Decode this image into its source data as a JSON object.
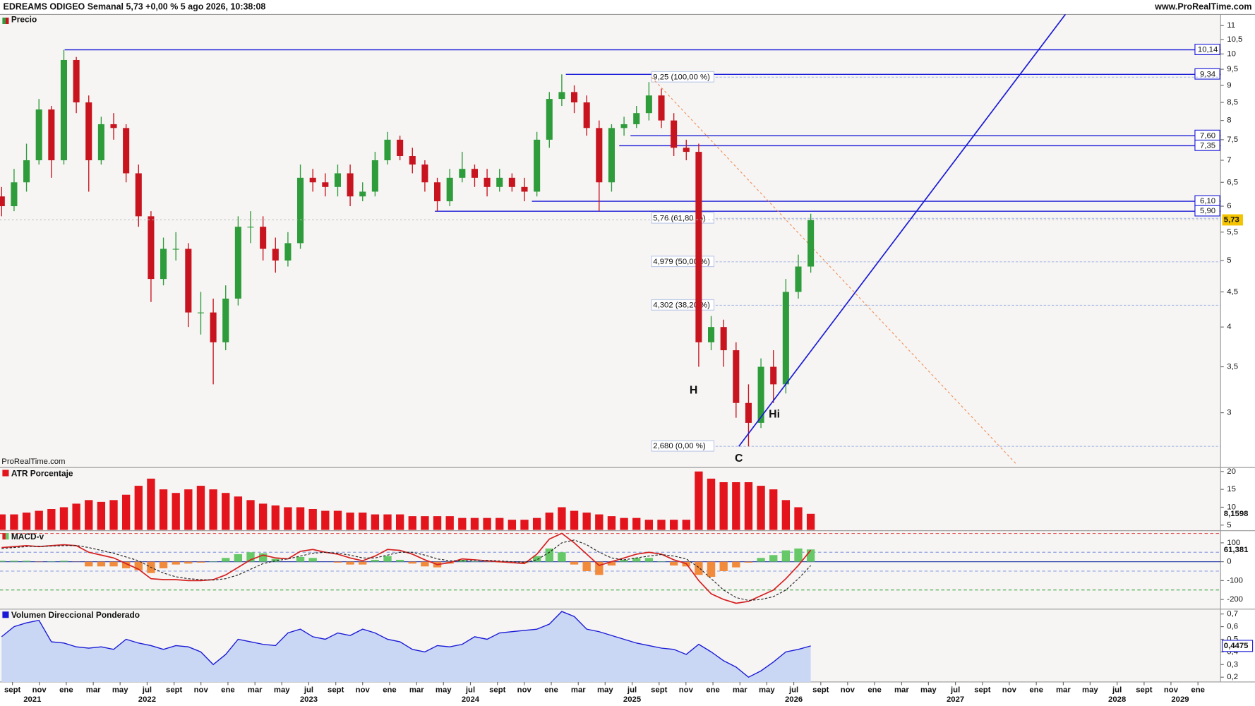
{
  "header": {
    "title": "EDREAMS ODIGEO Semanal 5,73 +0,00 % 5 ago 2026, 10:38:08",
    "site": "www.ProRealTime.com"
  },
  "chart_data": [
    {
      "type": "candlestick",
      "title": "Precio",
      "watermark": "ProRealTime.com",
      "log_scale": true,
      "up_color": "#2e9c3a",
      "down_color": "#c8141e",
      "x": [
        2021.6,
        2021.677,
        2021.754,
        2021.831,
        2021.908,
        2021.985,
        2022.062,
        2022.139,
        2022.216,
        2022.293,
        2022.37,
        2022.447,
        2022.524,
        2022.601,
        2022.678,
        2022.755,
        2022.832,
        2022.909,
        2022.986,
        2023.063,
        2023.14,
        2023.217,
        2023.294,
        2023.371,
        2023.448,
        2023.525,
        2023.602,
        2023.679,
        2023.756,
        2023.833,
        2023.91,
        2023.987,
        2024.064,
        2024.141,
        2024.218,
        2024.295,
        2024.372,
        2024.449,
        2024.526,
        2024.603,
        2024.68,
        2024.757,
        2024.834,
        2024.911,
        2024.988,
        2025.065,
        2025.142,
        2025.219,
        2025.296,
        2025.373,
        2025.45,
        2025.527,
        2025.604,
        2025.681,
        2025.758,
        2025.835,
        2025.912,
        2025.989,
        2026.066,
        2026.143,
        2026.22,
        2026.297,
        2026.374,
        2026.451,
        2026.528,
        2026.605
      ],
      "open": [
        6.2,
        6.0,
        6.5,
        7.0,
        8.3,
        7.0,
        9.8,
        8.5,
        7.0,
        7.9,
        7.8,
        6.7,
        5.8,
        4.7,
        5.2,
        5.2,
        4.2,
        4.2,
        3.8,
        4.4,
        5.6,
        5.6,
        5.2,
        5.0,
        5.3,
        6.6,
        6.5,
        6.4,
        6.7,
        6.2,
        6.3,
        7.0,
        7.5,
        7.1,
        6.9,
        6.5,
        6.1,
        6.6,
        6.8,
        6.6,
        6.4,
        6.6,
        6.4,
        6.3,
        7.5,
        8.6,
        8.8,
        8.5,
        7.8,
        6.5,
        7.8,
        7.9,
        8.2,
        8.7,
        8.0,
        7.3,
        7.2,
        3.8,
        4.0,
        3.7,
        3.1,
        2.9,
        3.5,
        3.3,
        4.5,
        4.9
      ],
      "high": [
        6.4,
        6.8,
        7.4,
        8.6,
        8.4,
        10.14,
        9.9,
        8.7,
        8.1,
        8.2,
        7.9,
        6.9,
        5.9,
        5.4,
        5.5,
        5.3,
        4.5,
        4.4,
        4.6,
        5.8,
        5.9,
        5.8,
        5.4,
        5.5,
        6.9,
        6.8,
        6.7,
        6.9,
        6.9,
        6.5,
        7.2,
        7.7,
        7.6,
        7.3,
        7.0,
        6.6,
        6.8,
        7.2,
        6.9,
        6.8,
        6.8,
        6.7,
        6.6,
        7.7,
        8.8,
        9.34,
        9.0,
        8.7,
        8.0,
        7.9,
        8.1,
        8.4,
        9.1,
        8.9,
        8.2,
        7.5,
        7.4,
        4.15,
        4.1,
        3.8,
        3.3,
        3.6,
        3.7,
        4.7,
        5.1,
        5.85
      ],
      "low": [
        5.8,
        5.9,
        6.3,
        6.9,
        6.6,
        6.9,
        8.2,
        6.3,
        6.9,
        7.5,
        6.5,
        5.6,
        4.35,
        4.6,
        5.0,
        4.0,
        3.9,
        3.3,
        3.7,
        4.3,
        5.3,
        5.0,
        4.8,
        4.9,
        5.2,
        6.3,
        6.2,
        6.2,
        6.0,
        6.1,
        6.2,
        6.9,
        7.0,
        6.7,
        6.3,
        5.9,
        6.0,
        6.5,
        6.4,
        6.2,
        6.3,
        6.3,
        6.1,
        6.2,
        7.3,
        8.4,
        8.2,
        7.6,
        5.9,
        6.3,
        7.6,
        7.8,
        8.0,
        7.8,
        7.1,
        7.0,
        3.5,
        3.7,
        3.5,
        2.95,
        2.68,
        2.85,
        3.1,
        3.2,
        4.4,
        4.8
      ],
      "close": [
        6.0,
        6.5,
        7.0,
        8.3,
        7.0,
        9.8,
        8.5,
        7.0,
        7.9,
        7.8,
        6.7,
        5.8,
        4.7,
        5.2,
        5.2,
        4.2,
        4.2,
        3.8,
        4.4,
        5.6,
        5.6,
        5.2,
        5.0,
        5.3,
        6.6,
        6.5,
        6.4,
        6.7,
        6.2,
        6.3,
        7.0,
        7.5,
        7.1,
        6.9,
        6.5,
        6.1,
        6.6,
        6.8,
        6.6,
        6.4,
        6.6,
        6.4,
        6.3,
        7.5,
        8.6,
        8.8,
        8.5,
        7.8,
        6.5,
        7.8,
        7.9,
        8.2,
        8.7,
        8.0,
        7.3,
        7.2,
        3.8,
        4.0,
        3.7,
        3.1,
        2.9,
        3.5,
        3.3,
        4.5,
        4.9,
        5.73
      ],
      "last_label": "5,73",
      "xlim": [
        2021.59,
        2029.14
      ],
      "xticks": [
        {
          "value": 2021.667,
          "label": "sept"
        },
        {
          "value": 2021.833,
          "label": "nov"
        },
        {
          "value": 2022,
          "label": "ene"
        },
        {
          "value": 2022.167,
          "label": "mar"
        },
        {
          "value": 2022.333,
          "label": "may"
        },
        {
          "value": 2022.5,
          "label": "jul"
        },
        {
          "value": 2022.667,
          "label": "sept"
        },
        {
          "value": 2022.833,
          "label": "nov"
        },
        {
          "value": 2023,
          "label": "ene"
        },
        {
          "value": 2023.167,
          "label": "mar"
        },
        {
          "value": 2023.333,
          "label": "may"
        },
        {
          "value": 2023.5,
          "label": "jul"
        },
        {
          "value": 2023.667,
          "label": "sept"
        },
        {
          "value": 2023.833,
          "label": "nov"
        },
        {
          "value": 2024,
          "label": "ene"
        },
        {
          "value": 2024.167,
          "label": "mar"
        },
        {
          "value": 2024.333,
          "label": "may"
        },
        {
          "value": 2024.5,
          "label": "jul"
        },
        {
          "value": 2024.667,
          "label": "sept"
        },
        {
          "value": 2024.833,
          "label": "nov"
        },
        {
          "value": 2025,
          "label": "ene"
        },
        {
          "value": 2025.167,
          "label": "mar"
        },
        {
          "value": 2025.333,
          "label": "may"
        },
        {
          "value": 2025.5,
          "label": "jul"
        },
        {
          "value": 2025.667,
          "label": "sept"
        },
        {
          "value": 2025.833,
          "label": "nov"
        },
        {
          "value": 2026,
          "label": "ene"
        },
        {
          "value": 2026.167,
          "label": "mar"
        },
        {
          "value": 2026.333,
          "label": "may"
        },
        {
          "value": 2026.5,
          "label": "jul"
        },
        {
          "value": 2026.667,
          "label": "sept"
        },
        {
          "value": 2026.833,
          "label": "nov"
        },
        {
          "value": 2027,
          "label": "ene"
        },
        {
          "value": 2027.167,
          "label": "mar"
        },
        {
          "value": 2027.333,
          "label": "may"
        },
        {
          "value": 2027.5,
          "label": "jul"
        },
        {
          "value": 2027.667,
          "label": "sept"
        },
        {
          "value": 2027.833,
          "label": "nov"
        },
        {
          "value": 2028,
          "label": "ene"
        },
        {
          "value": 2028.167,
          "label": "mar"
        },
        {
          "value": 2028.333,
          "label": "may"
        },
        {
          "value": 2028.5,
          "label": "jul"
        },
        {
          "value": 2028.667,
          "label": "sept"
        },
        {
          "value": 2028.833,
          "label": "nov"
        },
        {
          "value": 2029,
          "label": "ene"
        }
      ],
      "year_ticks": [
        {
          "value": 2021.79,
          "label": "2021"
        },
        {
          "value": 2022.5,
          "label": "2022"
        },
        {
          "value": 2023.5,
          "label": "2023"
        },
        {
          "value": 2024.5,
          "label": "2024"
        },
        {
          "value": 2025.5,
          "label": "2025"
        },
        {
          "value": 2026.5,
          "label": "2026"
        },
        {
          "value": 2027.5,
          "label": "2027"
        },
        {
          "value": 2028.5,
          "label": "2028"
        },
        {
          "value": 2028.89,
          "label": "2029"
        }
      ],
      "ylim": [
        2.51,
        11.42
      ],
      "yticks": [
        3,
        {
          "value": 3.5,
          "label": "3,5"
        },
        4,
        {
          "value": 4.5,
          "label": "4,5"
        },
        5,
        {
          "value": 5.5,
          "label": "5,5"
        },
        6,
        {
          "value": 6.5,
          "label": "6,5"
        },
        7,
        {
          "value": 7.5,
          "label": "7,5"
        },
        8,
        {
          "value": 8.5,
          "label": "8,5"
        },
        9,
        {
          "value": 9.5,
          "label": "9,5"
        },
        10,
        {
          "value": 10.5,
          "label": "10,5"
        },
        11
      ],
      "level_color": "#1a1ad6",
      "levels": [
        {
          "value": 10.14,
          "label": "10,14",
          "start": 2021.99
        },
        {
          "value": 9.34,
          "label": "9,34",
          "start": 2025.09
        },
        {
          "value": 7.6,
          "label": "7,60",
          "start": 2025.49
        },
        {
          "value": 7.35,
          "label": "7,35",
          "start": 2025.42
        },
        {
          "value": 6.1,
          "label": "6,10",
          "start": 2024.88
        },
        {
          "value": 5.9,
          "label": "5,90",
          "start": 2024.28
        }
      ],
      "fibonacci": {
        "start": 2025.62,
        "color": "#7f97d6",
        "levels": [
          {
            "value": 9.25,
            "label": "9,25 (100,00 %)"
          },
          {
            "value": 5.76,
            "label": "5,76 (61,80 %)"
          },
          {
            "value": 4.979,
            "label": "4,979 (50,00 %)"
          },
          {
            "value": 4.302,
            "label": "4,302 (38,20 %)"
          },
          {
            "value": 2.68,
            "label": "2,680 (0,00 %)"
          }
        ]
      },
      "trendline": {
        "x": [
          2026.16,
          2028.18
        ],
        "y": [
          2.68,
          11.42
        ],
        "color": "#1a1ad6"
      },
      "projection": {
        "x": [
          2025.62,
          2027.88
        ],
        "y": [
          9.25,
          2.52
        ],
        "color": "#f0905a"
      },
      "annotation_color": "#2a9a2a",
      "annotations": [
        {
          "text": "H",
          "x": 2025.88,
          "y": 3.23
        },
        {
          "text": "Hi",
          "x": 2026.38,
          "y": 2.98
        },
        {
          "text": "C",
          "x": 2026.16,
          "y": 2.57
        }
      ]
    },
    {
      "type": "bar",
      "title": "ATR Porcentaje",
      "color": "#e3141c",
      "values": [
        8,
        8,
        8.5,
        9,
        9.5,
        10,
        11,
        12,
        11.5,
        12,
        13.5,
        16,
        18,
        15,
        14,
        15,
        16,
        15,
        14,
        13,
        12,
        11,
        10.5,
        10,
        10,
        9.5,
        9,
        9,
        8.5,
        8.5,
        8,
        8,
        8,
        7.5,
        7.5,
        7.5,
        7.5,
        7,
        7,
        7,
        7,
        6.5,
        6.5,
        7,
        8.5,
        10,
        9,
        8.5,
        8,
        7.5,
        7,
        7,
        6.5,
        6.5,
        6.5,
        6.5,
        20,
        18,
        17,
        17,
        17,
        16,
        15,
        12,
        10,
        8.1598
      ],
      "last_label": "8,1598",
      "ylim": [
        3.66,
        20.9
      ],
      "yticks": [
        5,
        10,
        15,
        20
      ]
    },
    {
      "type": "line",
      "title": "MACD-v",
      "series": [
        {
          "color": "#d62020",
          "values": [
            75,
            80,
            85,
            80,
            85,
            90,
            85,
            50,
            35,
            20,
            -10,
            -40,
            -90,
            -95,
            -95,
            -100,
            -100,
            -95,
            -70,
            -30,
            10,
            35,
            20,
            15,
            55,
            65,
            50,
            40,
            20,
            5,
            30,
            65,
            60,
            40,
            10,
            -15,
            -5,
            15,
            10,
            5,
            0,
            -5,
            -10,
            40,
            120,
            150,
            100,
            40,
            -20,
            0,
            20,
            40,
            50,
            40,
            10,
            -10,
            -100,
            -170,
            -200,
            -220,
            -210,
            -180,
            -150,
            -90,
            -20,
            61.381
          ]
        },
        {
          "color": "#222222",
          "dashed": true,
          "values": [
            70,
            75,
            80,
            82,
            83,
            85,
            86,
            75,
            60,
            45,
            25,
            5,
            -30,
            -60,
            -80,
            -90,
            -95,
            -97,
            -90,
            -70,
            -40,
            -10,
            5,
            15,
            30,
            45,
            50,
            45,
            35,
            20,
            20,
            35,
            50,
            50,
            35,
            15,
            5,
            5,
            8,
            7,
            4,
            0,
            -3,
            10,
            50,
            100,
            115,
            90,
            50,
            20,
            10,
            20,
            30,
            38,
            30,
            15,
            -30,
            -90,
            -150,
            -190,
            -205,
            -200,
            -185,
            -150,
            -90,
            -20
          ]
        }
      ],
      "histogram": {
        "up_color": "#66c866",
        "down_color": "#f28a3c",
        "values": [
          5,
          5,
          5,
          -2,
          2,
          5,
          -1,
          -25,
          -25,
          -25,
          -35,
          -45,
          -60,
          -35,
          -15,
          -10,
          -5,
          2,
          20,
          40,
          50,
          45,
          15,
          0,
          25,
          20,
          0,
          -5,
          -15,
          -15,
          10,
          30,
          10,
          -10,
          -25,
          -30,
          -10,
          10,
          2,
          -2,
          -4,
          -5,
          -7,
          30,
          70,
          50,
          -15,
          -50,
          -70,
          -20,
          10,
          20,
          20,
          2,
          -20,
          -25,
          -70,
          -80,
          -50,
          -30,
          -5,
          20,
          35,
          60,
          70,
          65
        ]
      },
      "levels": [
        {
          "value": 150,
          "color": "#e05050"
        },
        {
          "value": 50,
          "color": "#8fa0e0"
        },
        {
          "value": -50,
          "color": "#8fa0e0"
        },
        {
          "value": -150,
          "color": "#3aa03a"
        }
      ],
      "last_label": "61,381",
      "ylim": [
        -247,
        160
      ],
      "yticks": [
        100,
        0,
        -100,
        -200
      ]
    },
    {
      "type": "area",
      "title": "Volumen Direccional Ponderado",
      "color": "#1a1ad6",
      "fill": "#c9d6f4",
      "values": [
        0.52,
        0.6,
        0.63,
        0.65,
        0.48,
        0.47,
        0.44,
        0.43,
        0.44,
        0.42,
        0.5,
        0.47,
        0.45,
        0.42,
        0.45,
        0.44,
        0.4,
        0.3,
        0.38,
        0.5,
        0.48,
        0.46,
        0.45,
        0.55,
        0.58,
        0.52,
        0.5,
        0.55,
        0.53,
        0.58,
        0.55,
        0.5,
        0.48,
        0.42,
        0.4,
        0.45,
        0.44,
        0.46,
        0.52,
        0.5,
        0.55,
        0.56,
        0.57,
        0.58,
        0.62,
        0.72,
        0.68,
        0.58,
        0.56,
        0.53,
        0.5,
        0.47,
        0.45,
        0.43,
        0.42,
        0.38,
        0.46,
        0.4,
        0.33,
        0.28,
        0.2,
        0.25,
        0.32,
        0.4,
        0.42,
        0.4475
      ],
      "last_label": "0,4475",
      "ylim": [
        0.162,
        0.732
      ],
      "yticks": [
        {
          "value": 0.2,
          "label": "0,2"
        },
        {
          "value": 0.3,
          "label": "0,3"
        },
        {
          "value": 0.4,
          "label": "0,4"
        },
        {
          "value": 0.5,
          "label": "0,5"
        },
        {
          "value": 0.6,
          "label": "0,6"
        },
        {
          "value": 0.7,
          "label": "0,7"
        }
      ]
    }
  ]
}
